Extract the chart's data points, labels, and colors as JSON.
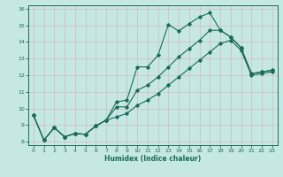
{
  "xlabel": "Humidex (Indice chaleur)",
  "ylabel": "",
  "xlim": [
    -0.5,
    23.5
  ],
  "ylim": [
    7.8,
    16.2
  ],
  "xticks": [
    0,
    1,
    2,
    3,
    4,
    5,
    6,
    7,
    8,
    9,
    10,
    11,
    12,
    13,
    14,
    15,
    16,
    17,
    18,
    19,
    20,
    21,
    22,
    23
  ],
  "yticks": [
    8,
    9,
    10,
    11,
    12,
    13,
    14,
    15,
    16
  ],
  "bg_color": "#c5e8e4",
  "line_color": "#1a6b5a",
  "grid_color": "#b8d8d4",
  "line1_x": [
    0,
    1,
    2,
    3,
    4,
    5,
    6,
    7,
    8,
    9,
    10,
    11,
    12,
    13,
    14,
    15,
    16,
    17,
    18,
    19,
    20,
    21,
    22,
    23
  ],
  "line1_y": [
    9.6,
    8.1,
    8.85,
    8.3,
    8.5,
    8.45,
    8.95,
    9.3,
    10.4,
    10.5,
    12.5,
    12.5,
    13.2,
    15.05,
    14.65,
    15.1,
    15.5,
    15.75,
    14.7,
    14.3,
    13.65,
    12.1,
    12.2,
    12.3
  ],
  "line2_x": [
    0,
    1,
    2,
    3,
    4,
    5,
    6,
    7,
    8,
    9,
    10,
    11,
    12,
    13,
    14,
    15,
    16,
    17,
    18,
    19,
    20,
    21,
    22,
    23
  ],
  "line2_y": [
    9.6,
    8.1,
    8.85,
    8.3,
    8.5,
    8.45,
    8.95,
    9.3,
    10.1,
    10.1,
    11.1,
    11.4,
    11.9,
    12.5,
    13.1,
    13.6,
    14.1,
    14.7,
    14.7,
    14.3,
    13.65,
    12.1,
    12.2,
    12.3
  ],
  "line3_x": [
    0,
    1,
    2,
    3,
    4,
    5,
    6,
    7,
    8,
    9,
    10,
    11,
    12,
    13,
    14,
    15,
    16,
    17,
    18,
    19,
    20,
    21,
    22,
    23
  ],
  "line3_y": [
    9.6,
    8.1,
    8.85,
    8.3,
    8.5,
    8.45,
    8.95,
    9.3,
    9.5,
    9.7,
    10.2,
    10.5,
    10.9,
    11.4,
    11.9,
    12.4,
    12.9,
    13.4,
    13.9,
    14.1,
    13.5,
    12.0,
    12.1,
    12.2
  ]
}
